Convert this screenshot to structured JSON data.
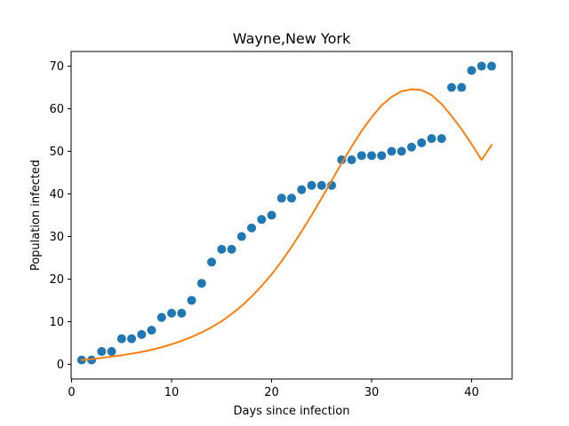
{
  "chart_data": {
    "type": "scatter",
    "title": "Wayne,New York",
    "xlabel": "Days since infection",
    "ylabel": "Population infected",
    "xlim": [
      -0.05,
      44.05
    ],
    "ylim": [
      -3.45,
      73.45
    ],
    "xticks": [
      0,
      10,
      20,
      30,
      40
    ],
    "yticks": [
      0,
      10,
      20,
      30,
      40,
      50,
      60,
      70
    ],
    "grid": false,
    "legend": "none",
    "series": [
      {
        "kind": "scatter",
        "color": "#1f77b4",
        "x": [
          1,
          2,
          3,
          4,
          5,
          6,
          7,
          8,
          9,
          10,
          11,
          12,
          13,
          14,
          15,
          16,
          17,
          18,
          19,
          20,
          21,
          22,
          23,
          24,
          25,
          26,
          27,
          28,
          29,
          30,
          31,
          32,
          33,
          34,
          35,
          36,
          37,
          38,
          39,
          40,
          41,
          42
        ],
        "y": [
          1,
          1,
          3,
          3,
          6,
          6,
          7,
          8,
          11,
          12,
          12,
          15,
          19,
          24,
          27,
          27,
          30,
          32,
          34,
          35,
          39,
          39,
          41,
          42,
          42,
          42,
          48,
          48,
          49,
          49,
          49,
          50,
          50,
          51,
          52,
          53,
          53,
          65,
          65,
          69,
          70,
          70
        ]
      },
      {
        "kind": "line",
        "color": "#ff7f0e",
        "x": [
          1,
          2,
          3,
          4,
          5,
          6,
          7,
          8,
          9,
          10,
          11,
          12,
          13,
          14,
          15,
          16,
          17,
          18,
          19,
          20,
          21,
          22,
          23,
          24,
          25,
          26,
          27,
          28,
          29,
          30,
          31,
          32,
          33,
          34,
          35,
          36,
          37,
          38,
          39,
          40,
          41,
          42
        ],
        "y": [
          1.0,
          1.2,
          1.5,
          1.8,
          2.1,
          2.5,
          2.9,
          3.4,
          4.0,
          4.7,
          5.5,
          6.4,
          7.5,
          8.7,
          10.1,
          11.8,
          13.7,
          15.9,
          18.4,
          21.1,
          24.2,
          27.6,
          31.2,
          35.0,
          39.0,
          43.1,
          47.2,
          51.1,
          54.8,
          58.0,
          60.8,
          62.8,
          64.1,
          64.6,
          64.4,
          63.2,
          61.1,
          58.3,
          55.2,
          51.7,
          48.0,
          51.5
        ]
      }
    ]
  }
}
